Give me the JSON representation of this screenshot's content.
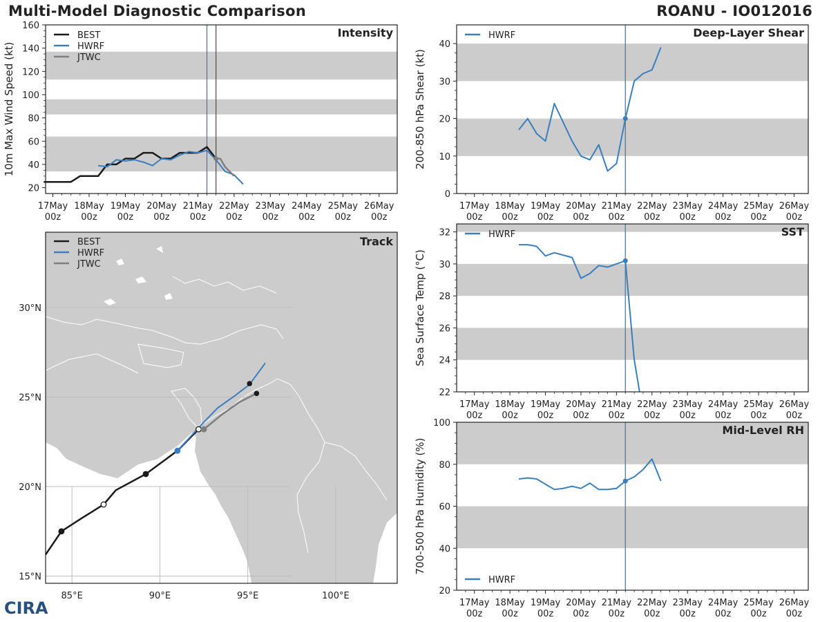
{
  "header": {
    "title": "Multi-Model Diagnostic Comparison",
    "storm": "ROANU - IO012016"
  },
  "logo_text": "CIRA",
  "colors": {
    "BEST": "#1a1a1a",
    "HWRF": "#3a7ebf",
    "JTWC": "#7f7f7f",
    "band": "#cccccc",
    "land": "#cccccc",
    "ocean": "#ffffff"
  },
  "time_ticks": [
    "17May\n00z",
    "18May\n00z",
    "19May\n00z",
    "20May\n00z",
    "21May\n00z",
    "22May\n00z",
    "23May\n00z",
    "24May\n00z",
    "25May\n00z",
    "26May\n00z"
  ],
  "chart_data": [
    {
      "id": "intensity",
      "type": "line",
      "title": "Intensity",
      "ylabel": "10m Max Wind Speed (kt)",
      "xlabel": "",
      "xlim": [
        -0.2,
        9.5
      ],
      "ylim": [
        15,
        160
      ],
      "yticks": [
        20,
        40,
        60,
        80,
        100,
        120,
        140,
        160
      ],
      "bands": [
        [
          34,
          64
        ],
        [
          83,
          96
        ],
        [
          113,
          137
        ]
      ],
      "vlines": [
        {
          "x": 4.25,
          "color": "#3a7ebf"
        },
        {
          "x": 4.5,
          "color": "#555555"
        }
      ],
      "legend": "top-left",
      "series": [
        {
          "name": "BEST",
          "color": "#1a1a1a",
          "width": 2.5,
          "x": [
            -0.25,
            0,
            0.25,
            0.5,
            0.75,
            1,
            1.25,
            1.5,
            1.75,
            2,
            2.25,
            2.5,
            2.75,
            3,
            3.25,
            3.5,
            3.75,
            4,
            4.25,
            4.5
          ],
          "y": [
            25,
            25,
            25,
            25,
            30,
            30,
            30,
            40,
            40,
            45,
            45,
            50,
            50,
            45,
            45,
            50,
            50,
            50,
            55,
            45
          ]
        },
        {
          "name": "HWRF",
          "color": "#3a7ebf",
          "width": 2,
          "x": [
            1.25,
            1.5,
            1.75,
            2,
            2.25,
            2.5,
            2.75,
            3,
            3.25,
            3.5,
            3.75,
            4,
            4.25,
            4.5,
            4.75,
            5,
            5.25
          ],
          "y": [
            39,
            38,
            44,
            43,
            44,
            42,
            39,
            45,
            44,
            48,
            51,
            50,
            52,
            44,
            34,
            31,
            23
          ]
        },
        {
          "name": "JTWC",
          "color": "#7f7f7f",
          "width": 2.5,
          "x": [
            4.5,
            4.62,
            4.75,
            5
          ],
          "y": [
            45,
            45,
            38,
            30
          ]
        }
      ],
      "markers": [
        {
          "series": "JTWC",
          "x": 4.5,
          "y": 45
        }
      ]
    },
    {
      "id": "shear",
      "type": "line",
      "title": "Deep-Layer Shear",
      "ylabel": "200-850 hPa Shear (kt)",
      "xlabel": "",
      "xlim": [
        -0.5,
        9.4
      ],
      "ylim": [
        0,
        45
      ],
      "yticks": [
        0,
        10,
        20,
        30,
        40
      ],
      "bands": [
        [
          10,
          20
        ],
        [
          30,
          40
        ]
      ],
      "vlines": [
        {
          "x": 4.25,
          "color": "#3a7ebf"
        }
      ],
      "legend": "top-left",
      "series": [
        {
          "name": "HWRF",
          "color": "#3a7ebf",
          "width": 2,
          "x": [
            1.25,
            1.5,
            1.75,
            2,
            2.25,
            2.5,
            2.75,
            3,
            3.25,
            3.5,
            3.75,
            4,
            4.25,
            4.5,
            4.75,
            5,
            5.25
          ],
          "y": [
            17,
            20,
            16,
            14,
            24,
            19,
            14,
            10,
            9,
            13,
            6,
            8,
            20,
            30,
            32,
            33,
            39
          ]
        }
      ],
      "markers": [
        {
          "series": "HWRF",
          "x": 4.25,
          "y": 20
        }
      ]
    },
    {
      "id": "sst",
      "type": "line",
      "title": "SST",
      "ylabel": "Sea Surface Temp (°C)",
      "xlabel": "",
      "xlim": [
        -0.5,
        9.4
      ],
      "ylim": [
        22,
        32.5
      ],
      "yticks": [
        22,
        24,
        26,
        28,
        30,
        32
      ],
      "bands": [
        [
          24,
          26
        ],
        [
          28,
          30
        ],
        [
          32,
          32.5
        ]
      ],
      "vlines": [
        {
          "x": 4.25,
          "color": "#3a7ebf"
        }
      ],
      "legend": "top-left",
      "series": [
        {
          "name": "HWRF",
          "color": "#3a7ebf",
          "width": 2,
          "x": [
            1.25,
            1.5,
            1.75,
            2,
            2.25,
            2.5,
            2.75,
            3,
            3.25,
            3.5,
            3.75,
            4,
            4.25,
            4.5,
            4.65
          ],
          "y": [
            31.2,
            31.2,
            31.1,
            30.5,
            30.7,
            30.55,
            30.4,
            29.1,
            29.4,
            29.9,
            29.8,
            30,
            30.2,
            24,
            22
          ]
        }
      ],
      "markers": [
        {
          "series": "HWRF",
          "x": 4.25,
          "y": 30.2
        }
      ]
    },
    {
      "id": "rh",
      "type": "line",
      "title": "Mid-Level RH",
      "ylabel": "700-500 hPa Humidity (%)",
      "xlabel": "",
      "xlim": [
        -0.5,
        9.4
      ],
      "ylim": [
        20,
        100
      ],
      "yticks": [
        20,
        40,
        60,
        80,
        100
      ],
      "bands": [
        [
          40,
          60
        ],
        [
          80,
          100
        ]
      ],
      "vlines": [
        {
          "x": 4.25,
          "color": "#3a7ebf"
        }
      ],
      "legend": "bottom-left",
      "series": [
        {
          "name": "HWRF",
          "color": "#3a7ebf",
          "width": 2,
          "x": [
            1.25,
            1.5,
            1.75,
            2,
            2.25,
            2.5,
            2.75,
            3,
            3.25,
            3.5,
            3.75,
            4,
            4.25,
            4.5,
            4.75,
            5,
            5.25
          ],
          "y": [
            73,
            73.5,
            73,
            70.5,
            68,
            68.5,
            69.5,
            68.5,
            71,
            68,
            68,
            68.5,
            72,
            74,
            77.5,
            82.5,
            72
          ]
        }
      ],
      "markers": [
        {
          "series": "HWRF",
          "x": 4.25,
          "y": 72
        }
      ]
    },
    {
      "id": "track",
      "type": "scatter",
      "title": "Track",
      "xlabel": "",
      "ylabel": "",
      "xlim": [
        83.5,
        103.5
      ],
      "ylim": [
        14.6,
        34.2
      ],
      "xticks": [
        85,
        90,
        95,
        100
      ],
      "xtick_labels": [
        "85°E",
        "90°E",
        "95°E",
        "100°E"
      ],
      "yticks": [
        15,
        20,
        25,
        30
      ],
      "ytick_labels": [
        "15°N",
        "20°N",
        "25°N",
        "30°N"
      ],
      "legend": "top-left",
      "series": [
        {
          "name": "BEST",
          "color": "#1a1a1a",
          "width": 2.5,
          "lon": [
            83.5,
            84.4,
            85.5,
            86.8,
            87.5,
            89.2,
            91,
            92.2
          ],
          "lat": [
            16.2,
            17.5,
            18.2,
            19,
            19.8,
            20.7,
            22,
            23.2
          ],
          "points": [
            {
              "lon": 84.4,
              "lat": 17.5,
              "fill": "#1a1a1a"
            },
            {
              "lon": 86.8,
              "lat": 19,
              "fill": "#ffffff"
            },
            {
              "lon": 89.2,
              "lat": 20.7,
              "fill": "#1a1a1a"
            },
            {
              "lon": 92.2,
              "lat": 23.2,
              "fill": "#ffffff"
            }
          ]
        },
        {
          "name": "HWRF",
          "color": "#3a7ebf",
          "width": 2,
          "lon": [
            91,
            92.5,
            93.3,
            94.3,
            95.1,
            96
          ],
          "lat": [
            22,
            23.6,
            24.4,
            25.1,
            25.7,
            26.9
          ],
          "points": [
            {
              "lon": 91,
              "lat": 22,
              "fill": "#3a7ebf"
            }
          ]
        },
        {
          "name": "JTWC",
          "color": "#7f7f7f",
          "width": 2.5,
          "lon": [
            92.5,
            93.5,
            94.5,
            95.5
          ],
          "lat": [
            23.2,
            24,
            24.7,
            25.2
          ],
          "points": [
            {
              "lon": 92.5,
              "lat": 23.2,
              "fill": "#7f7f7f"
            }
          ]
        }
      ],
      "best_extra_points": [
        {
          "lon": 95.1,
          "lat": 25.75
        },
        {
          "lon": 95.5,
          "lat": 25.2
        }
      ]
    }
  ]
}
